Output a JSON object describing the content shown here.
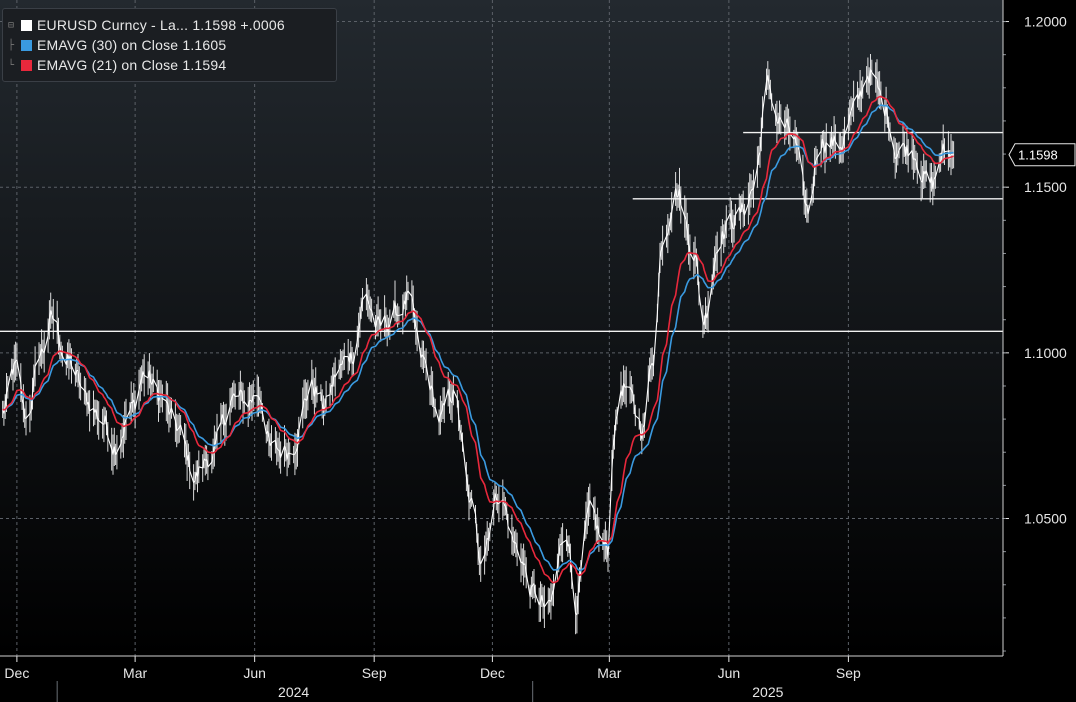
{
  "chart_data": {
    "type": "line",
    "instrument": "EURUSD Curncy",
    "colors": {
      "background_top": "#23292f",
      "background_bottom": "#000000",
      "price": "#ffffff",
      "ema30": "#3a9ae0",
      "ema21": "#e8283c",
      "grid": "#5b6067",
      "axis_text": "#e6e6e6"
    },
    "legend": [
      {
        "text": "EURUSD Curncy - La...  1.1598  +.0006",
        "color": "#ffffff",
        "tree": "⊟"
      },
      {
        "text": "EMAVG (30)  on Close  1.1605",
        "color": "#3a9ae0",
        "tree": "├"
      },
      {
        "text": "EMAVG (21)  on Close  1.1594",
        "color": "#e8283c",
        "tree": "└"
      }
    ],
    "last_price_label": "1.1598",
    "last_price": 1.1598,
    "ylim": [
      1.0085,
      1.2065
    ],
    "yticks": [
      {
        "value": 1.05,
        "label": "1.0500"
      },
      {
        "value": 1.1,
        "label": "1.1000"
      },
      {
        "value": 1.15,
        "label": "1.1500"
      },
      {
        "value": 1.2,
        "label": "1.2000"
      }
    ],
    "xlim": [
      "2023-11-18",
      "2025-12-29"
    ],
    "month_ticks": [
      {
        "date": "2023-12-01",
        "label": "Dec"
      },
      {
        "date": "2024-03-01",
        "label": "Mar"
      },
      {
        "date": "2024-06-01",
        "label": "Jun"
      },
      {
        "date": "2024-09-01",
        "label": "Sep"
      },
      {
        "date": "2024-12-01",
        "label": "Dec"
      },
      {
        "date": "2025-03-01",
        "label": "Mar"
      },
      {
        "date": "2025-06-01",
        "label": "Jun"
      },
      {
        "date": "2025-09-01",
        "label": "Sep"
      }
    ],
    "year_labels": [
      {
        "date": "2024-07-01",
        "label": "2024"
      },
      {
        "date": "2025-07-01",
        "label": "2025"
      }
    ],
    "year_separators": [
      "2024-01-01",
      "2025-01-01"
    ],
    "grid": true,
    "horizontal_lines": [
      {
        "y": 1.1065,
        "from": "2023-11-18",
        "to": "2025-12-29"
      },
      {
        "y": 1.1465,
        "from": "2025-03-19",
        "to": "2025-12-29"
      },
      {
        "y": 1.1665,
        "from": "2025-06-12",
        "to": "2025-12-29"
      }
    ],
    "price_series": {
      "name": "EURUSD Curncy",
      "start": "2023-11-20",
      "end": "2025-11-21",
      "anchors": [
        [
          "2023-11-20",
          1.082
        ],
        [
          "2023-11-30",
          1.095
        ],
        [
          "2023-12-08",
          1.08
        ],
        [
          "2023-12-20",
          1.1
        ],
        [
          "2023-12-28",
          1.11
        ],
        [
          "2024-01-10",
          1.097
        ],
        [
          "2024-01-25",
          1.085
        ],
        [
          "2024-02-05",
          1.08
        ],
        [
          "2024-02-14",
          1.073
        ],
        [
          "2024-02-28",
          1.083
        ],
        [
          "2024-03-08",
          1.094
        ],
        [
          "2024-03-20",
          1.087
        ],
        [
          "2024-04-02",
          1.077
        ],
        [
          "2024-04-16",
          1.063
        ],
        [
          "2024-04-30",
          1.07
        ],
        [
          "2024-05-15",
          1.086
        ],
        [
          "2024-05-25",
          1.085
        ],
        [
          "2024-06-05",
          1.088
        ],
        [
          "2024-06-14",
          1.07
        ],
        [
          "2024-06-28",
          1.071
        ],
        [
          "2024-07-15",
          1.09
        ],
        [
          "2024-07-25",
          1.084
        ],
        [
          "2024-08-05",
          1.095
        ],
        [
          "2024-08-15",
          1.1
        ],
        [
          "2024-08-25",
          1.117
        ],
        [
          "2024-09-05",
          1.107
        ],
        [
          "2024-09-18",
          1.112
        ],
        [
          "2024-09-27",
          1.116
        ],
        [
          "2024-10-08",
          1.097
        ],
        [
          "2024-10-22",
          1.08
        ],
        [
          "2024-11-01",
          1.088
        ],
        [
          "2024-11-15",
          1.053
        ],
        [
          "2024-11-22",
          1.04
        ],
        [
          "2024-12-06",
          1.058
        ],
        [
          "2024-12-20",
          1.041
        ],
        [
          "2025-01-02",
          1.027
        ],
        [
          "2025-01-13",
          1.022
        ],
        [
          "2025-01-27",
          1.047
        ],
        [
          "2025-02-03",
          1.025
        ],
        [
          "2025-02-14",
          1.05
        ],
        [
          "2025-02-28",
          1.04
        ],
        [
          "2025-03-05",
          1.078
        ],
        [
          "2025-03-11",
          1.09
        ],
        [
          "2025-03-27",
          1.078
        ],
        [
          "2025-04-04",
          1.1
        ],
        [
          "2025-04-11",
          1.135
        ],
        [
          "2025-04-21",
          1.15
        ],
        [
          "2025-05-05",
          1.132
        ],
        [
          "2025-05-12",
          1.11
        ],
        [
          "2025-05-26",
          1.137
        ],
        [
          "2025-06-10",
          1.142
        ],
        [
          "2025-06-20",
          1.15
        ],
        [
          "2025-07-01",
          1.18
        ],
        [
          "2025-07-10",
          1.17
        ],
        [
          "2025-07-20",
          1.165
        ],
        [
          "2025-08-01",
          1.142
        ],
        [
          "2025-08-10",
          1.165
        ],
        [
          "2025-08-25",
          1.163
        ],
        [
          "2025-09-05",
          1.172
        ],
        [
          "2025-09-17",
          1.185
        ],
        [
          "2025-09-30",
          1.173
        ],
        [
          "2025-10-08",
          1.162
        ],
        [
          "2025-10-20",
          1.162
        ],
        [
          "2025-11-04",
          1.15
        ],
        [
          "2025-11-13",
          1.16
        ],
        [
          "2025-11-21",
          1.1598
        ]
      ]
    },
    "series": [
      {
        "name": "EMAVG (30)",
        "period": 30,
        "last": 1.1605,
        "color": "#3a9ae0"
      },
      {
        "name": "EMAVG (21)",
        "period": 21,
        "last": 1.1594,
        "color": "#e8283c"
      }
    ]
  }
}
